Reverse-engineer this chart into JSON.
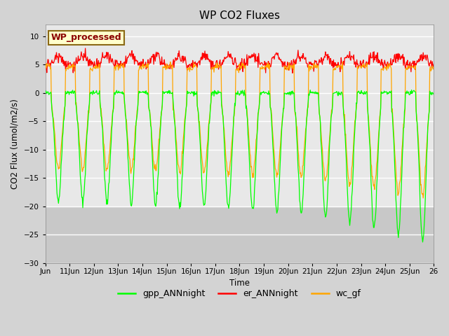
{
  "title": "WP CO2 Fluxes",
  "xlabel": "Time",
  "ylabel": "CO2 Flux (umol/m2/s)",
  "ylim": [
    -30,
    12
  ],
  "yticks": [
    -30,
    -25,
    -20,
    -15,
    -10,
    -5,
    0,
    5,
    10
  ],
  "annotation_text": "WP_processed",
  "annotation_bg": "#ffffcc",
  "annotation_text_color": "#8b0000",
  "annotation_border_color": "#8b6914",
  "line_colors": {
    "gpp": "#00ff00",
    "er": "#ff0000",
    "wc": "#ffa500"
  },
  "legend_labels": [
    "gpp_ANNnight",
    "er_ANNnight",
    "wc_gf"
  ],
  "background_color": "#d3d3d3",
  "plot_bg_upper": "#e8e8e8",
  "plot_bg_lower": "#c8c8c8",
  "grid_color": "#ffffff",
  "title_fontsize": 11,
  "figsize": [
    6.4,
    4.8
  ],
  "dpi": 100
}
